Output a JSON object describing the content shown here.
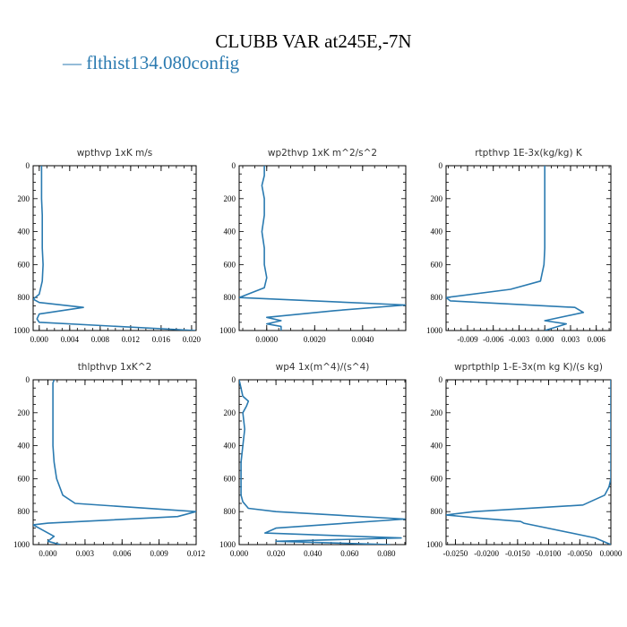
{
  "title": "CLUBB VAR at245E,-7N",
  "legend": {
    "line": "—",
    "label": "flthist134.080config"
  },
  "colors": {
    "line": "#2a7ab0",
    "axis": "#000000"
  },
  "chart_data": [
    {
      "type": "line",
      "title": "wpthvp   1xK m/s",
      "xlim": [
        -0.0008,
        0.0206
      ],
      "ylim": [
        0,
        1000
      ],
      "xticks": [
        0.0,
        0.004,
        0.008,
        0.012,
        0.016,
        0.02
      ],
      "xticklabels": [
        "0.000",
        "0.004",
        "0.008",
        "0.012",
        "0.016",
        "0.020"
      ],
      "yticks": [
        0,
        200,
        400,
        600,
        800,
        1000
      ],
      "yticklabels": [
        "0",
        "200",
        "400",
        "600",
        "800",
        "1000"
      ],
      "series": [
        {
          "x": [
            0.0003,
            0.0003,
            0.0003,
            0.0004,
            0.0004,
            0.0004,
            0.0005,
            0.0004,
            0.0,
            -0.0008,
            0.0,
            0.0058,
            0.0,
            -0.0003,
            0.0,
            0.0205
          ],
          "y": [
            0,
            100,
            200,
            300,
            400,
            500,
            600,
            700,
            780,
            810,
            830,
            860,
            900,
            930,
            950,
            1000
          ]
        }
      ]
    },
    {
      "type": "line",
      "title": "wp2thvp   1xK m^2/s^2",
      "xlim": [
        -0.00115,
        0.0058
      ],
      "ylim": [
        0,
        1000
      ],
      "xticks": [
        0.0,
        0.002,
        0.004
      ],
      "xticklabels": [
        "0.0000",
        "0.0020",
        "0.0040"
      ],
      "yticks": [
        0,
        200,
        400,
        600,
        800,
        1000
      ],
      "yticklabels": [
        "0",
        "200",
        "400",
        "600",
        "800",
        "1000"
      ],
      "series": [
        {
          "x": [
            -0.0001,
            -0.0001,
            -0.0002,
            -0.0001,
            -0.0001,
            -0.0002,
            -0.0001,
            -0.0001,
            0.0,
            -0.0001,
            -0.00115,
            0.0058,
            0.0028,
            0.0,
            0.0006,
            0.0,
            0.0006,
            0.0006
          ],
          "y": [
            0,
            60,
            120,
            200,
            300,
            400,
            500,
            600,
            680,
            740,
            800,
            845,
            880,
            920,
            940,
            960,
            975,
            1000
          ]
        }
      ]
    },
    {
      "type": "line",
      "title": "rtpthvp   1E-3x(kg/kg) K",
      "xlim": [
        -0.0115,
        0.0077
      ],
      "ylim": [
        0,
        1000
      ],
      "xticks": [
        -0.009,
        -0.006,
        -0.003,
        0.0,
        0.003,
        0.006
      ],
      "xticklabels": [
        "-0.009",
        "-0.006",
        "-0.003",
        "0.000",
        "0.003",
        "0.006"
      ],
      "yticks": [
        0,
        200,
        400,
        600,
        800,
        1000
      ],
      "yticklabels": [
        "0",
        "200",
        "400",
        "600",
        "800",
        "1000"
      ],
      "series": [
        {
          "x": [
            0.0,
            0.0,
            0.0,
            0.0,
            0.0,
            0.0,
            -0.0001,
            -0.0005,
            -0.004,
            -0.0115,
            -0.011,
            0.0035,
            0.0045,
            0.0,
            0.0025,
            0.0
          ],
          "y": [
            0,
            100,
            200,
            300,
            400,
            500,
            600,
            700,
            750,
            800,
            820,
            860,
            890,
            940,
            960,
            1000
          ]
        }
      ]
    },
    {
      "type": "line",
      "title": "thlpthvp   1xK^2",
      "xlim": [
        -0.0012,
        0.012
      ],
      "ylim": [
        0,
        1000
      ],
      "xticks": [
        0.0,
        0.003,
        0.006,
        0.009,
        0.012
      ],
      "xticklabels": [
        "0.000",
        "0.003",
        "0.006",
        "0.009",
        "0.012"
      ],
      "yticks": [
        0,
        200,
        400,
        600,
        800,
        1000
      ],
      "yticklabels": [
        "0",
        "200",
        "400",
        "600",
        "800",
        "1000"
      ],
      "series": [
        {
          "x": [
            0.0005,
            0.0004,
            0.0004,
            0.0004,
            0.0004,
            0.0004,
            0.0005,
            0.0007,
            0.0012,
            0.0022,
            0.012,
            0.0105,
            0.0,
            -0.0012,
            0.0005,
            0.0,
            0.001
          ],
          "y": [
            0,
            20,
            100,
            200,
            300,
            400,
            500,
            600,
            700,
            750,
            800,
            830,
            870,
            880,
            950,
            980,
            1000
          ]
        }
      ]
    },
    {
      "type": "line",
      "title": "wp4   1x(m^4)/(s^4)",
      "xlim": [
        0.0,
        0.0905
      ],
      "ylim": [
        0,
        1000
      ],
      "xticks": [
        0.0,
        0.02,
        0.04,
        0.06,
        0.08
      ],
      "xticklabels": [
        "0.000",
        "0.020",
        "0.040",
        "0.060",
        "0.080"
      ],
      "yticks": [
        0,
        200,
        400,
        600,
        800,
        1000
      ],
      "yticklabels": [
        "0",
        "200",
        "400",
        "600",
        "800",
        "1000"
      ],
      "series": [
        {
          "x": [
            0.0,
            0.002,
            0.005,
            0.004,
            0.002,
            0.003,
            0.002,
            0.001,
            0.001,
            0.001,
            0.002,
            0.005,
            0.02,
            0.09,
            0.02,
            0.014,
            0.088,
            0.02,
            0.082
          ],
          "y": [
            0,
            100,
            130,
            160,
            200,
            300,
            400,
            500,
            600,
            700,
            740,
            780,
            800,
            845,
            900,
            930,
            960,
            980,
            1000
          ]
        }
      ]
    },
    {
      "type": "line",
      "title": "wprtpthlp   1-E-3x(m kg K)/(s kg)",
      "xlim": [
        -0.0265,
        0.0
      ],
      "ylim": [
        0,
        1000
      ],
      "xticks": [
        -0.025,
        -0.02,
        -0.015,
        -0.01,
        -0.005,
        0.0
      ],
      "xticklabels": [
        "-0.0250",
        "-0.0200",
        "-0.0150",
        "-0.0100",
        "-0.0050",
        "0.0000"
      ],
      "yticks": [
        0,
        200,
        400,
        600,
        800,
        1000
      ],
      "yticklabels": [
        "0",
        "200",
        "400",
        "600",
        "800",
        "1000"
      ],
      "series": [
        {
          "x": [
            0.0,
            0.0,
            0.0,
            0.0,
            0.0,
            0.0,
            0.0,
            -0.0003,
            -0.001,
            -0.0045,
            -0.022,
            -0.0265,
            -0.021,
            -0.0145,
            -0.014,
            -0.0025,
            0.0
          ],
          "y": [
            0,
            100,
            200,
            300,
            400,
            500,
            600,
            650,
            700,
            760,
            800,
            820,
            840,
            860,
            870,
            960,
            1000
          ]
        }
      ]
    }
  ]
}
